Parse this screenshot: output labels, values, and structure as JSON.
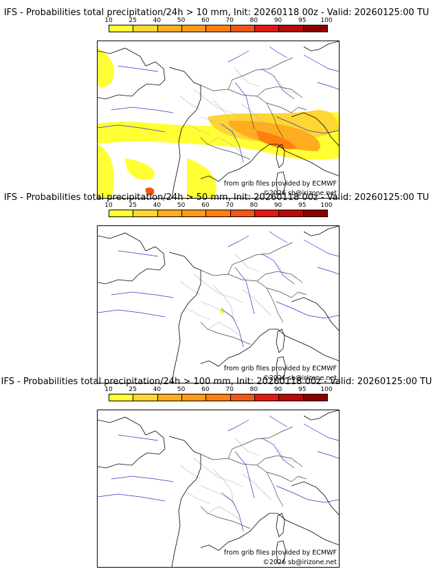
{
  "colorbar": {
    "ticks": [
      "10",
      "25",
      "40",
      "50",
      "60",
      "70",
      "80",
      "90",
      "95",
      "100"
    ],
    "colors": [
      "#ffff33",
      "#ffd633",
      "#ffad1f",
      "#ff9a1a",
      "#ff7f11",
      "#f2551a",
      "#e01a10",
      "#b80a0a",
      "#8c0000"
    ]
  },
  "credits": {
    "source": "from grib files provided by ECMWF",
    "copyright": "©2026 sb@irizone.net"
  },
  "panels": [
    {
      "title": "IFS - Probabilities total precipitation/24h > 10 mm, Init: 20260118 00z - Valid: 20260125:00 TU",
      "threshold_mm": 10
    },
    {
      "title": "IFS - Probabilities total precipitation/24h > 50 mm, Init: 20260118 00z - Valid: 20260125:00 TU",
      "threshold_mm": 50
    },
    {
      "title": "IFS - Probabilities total precipitation/24h > 100 mm, Init: 20260118 00z - Valid: 20260125:00 TU",
      "threshold_mm": 100
    }
  ]
}
